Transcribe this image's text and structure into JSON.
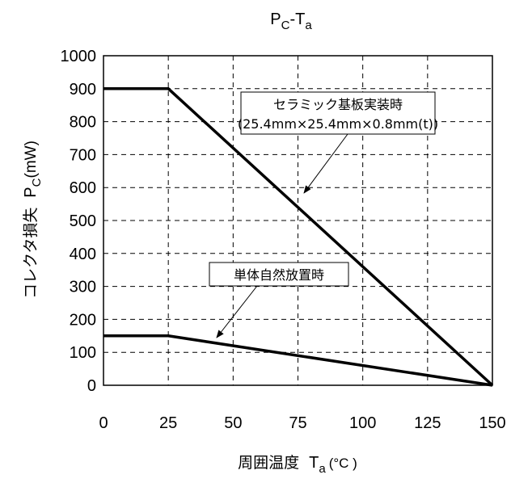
{
  "chart_data": {
    "type": "line",
    "title": {
      "main": "P",
      "sub": "C",
      "sep": "-T",
      "sub2": "a"
    },
    "xlabel": {
      "text": "周囲温度",
      "symbol": "T",
      "sub": "a",
      "unit": "(°C )"
    },
    "ylabel": {
      "text": "コレクタ損失",
      "symbol": "P",
      "sub": "C",
      "unit": "(mW)"
    },
    "xlim": [
      0,
      150
    ],
    "ylim": [
      0,
      1000
    ],
    "xticks": [
      0,
      25,
      50,
      75,
      100,
      125,
      150
    ],
    "yticks": [
      0,
      100,
      200,
      300,
      400,
      500,
      600,
      700,
      800,
      900,
      1000
    ],
    "grid": true,
    "series": [
      {
        "x": [
          0,
          25,
          150
        ],
        "y": [
          900,
          900,
          0
        ]
      },
      {
        "x": [
          0,
          25,
          150
        ],
        "y": [
          150,
          150,
          0
        ]
      }
    ],
    "annotations": [
      {
        "lines": [
          "セラミック基板実装時",
          "(25.4mm×25.4mm×0.8mm(t))"
        ],
        "points_to": [
          95,
          590
        ]
      },
      {
        "lines": [
          "単体自然放置時"
        ],
        "points_to": [
          45,
          140
        ]
      }
    ]
  }
}
